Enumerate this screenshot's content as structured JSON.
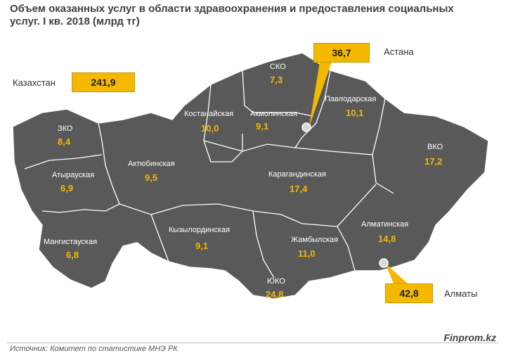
{
  "title": "Объем оказанных услуг в области здравоохранения и предоставления социальных услуг. I кв. 2018 (млрд тг)",
  "total": {
    "label": "Казахстан",
    "value": "241,9"
  },
  "regions": [
    {
      "name": "ЗКО",
      "value": "8,4"
    },
    {
      "name": "Атырауская",
      "value": "6,9"
    },
    {
      "name": "Мангистауская",
      "value": "6,8"
    },
    {
      "name": "Актюбинская",
      "value": "9,5"
    },
    {
      "name": "Костанайская",
      "value": "10,0"
    },
    {
      "name": "СКО",
      "value": "7,3"
    },
    {
      "name": "Акмолинская",
      "value": "9,1"
    },
    {
      "name": "Павлодарская",
      "value": "10,1"
    },
    {
      "name": "ВКО",
      "value": "17,2"
    },
    {
      "name": "Карагандинская",
      "value": "17,4"
    },
    {
      "name": "Кызылординская",
      "value": "9,1"
    },
    {
      "name": "Жамбылская",
      "value": "11,0"
    },
    {
      "name": "ЮКО",
      "value": "24,8"
    },
    {
      "name": "Алматинская",
      "value": "14,8"
    }
  ],
  "cities": [
    {
      "name": "Астана",
      "value": "36,7"
    },
    {
      "name": "Алматы",
      "value": "42,8"
    }
  ],
  "source": "Источник: Комитет по статистике МНЭ РК",
  "brand": "Finprom.kz",
  "colors": {
    "region_fill": "#595959",
    "border": "#ffffff",
    "accent": "#f5b800",
    "value_text": "#f5b800"
  }
}
